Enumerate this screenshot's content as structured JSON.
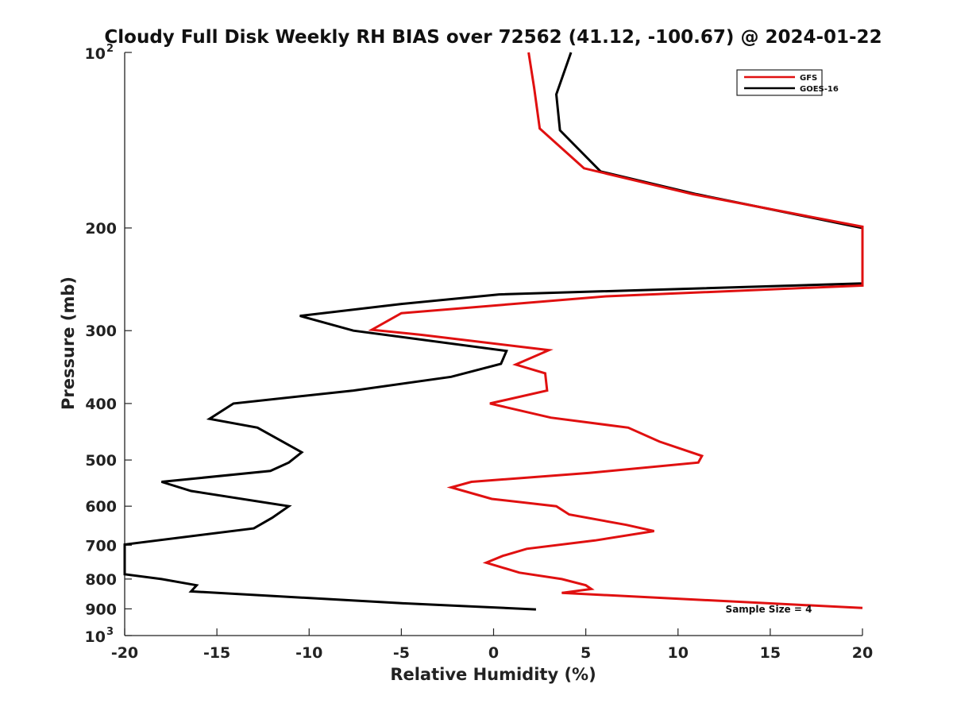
{
  "chart_data": {
    "type": "line",
    "title": "Cloudy Full Disk Weekly RH BIAS over 72562 (41.12, -100.67) @ 2024-01-22",
    "xlabel": "Relative Humidity (%)",
    "ylabel": "Pressure (mb)",
    "xlim": [
      -20,
      20
    ],
    "ylim": [
      100,
      1000
    ],
    "y_scale": "log",
    "y_reversed": true,
    "x_ticks": [
      "-20",
      "-15",
      "-10",
      "-5",
      "0",
      "5",
      "10",
      "15",
      "20"
    ],
    "y_ticks": [
      {
        "value": 100,
        "base": "10",
        "exp": "2"
      },
      {
        "value": 200,
        "label": "200"
      },
      {
        "value": 300,
        "label": "300"
      },
      {
        "value": 400,
        "label": "400"
      },
      {
        "value": 500,
        "label": "500"
      },
      {
        "value": 600,
        "label": "600"
      },
      {
        "value": 700,
        "label": "700"
      },
      {
        "value": 800,
        "label": "800"
      },
      {
        "value": 900,
        "label": "900"
      },
      {
        "value": 1000,
        "base": "10",
        "exp": "3"
      }
    ],
    "grid": false,
    "legend_position": "top-right",
    "series": [
      {
        "name": "GFS",
        "color": "#e01010",
        "points": [
          [
            1.9,
            100
          ],
          [
            2.2,
            115
          ],
          [
            2.5,
            135
          ],
          [
            4.9,
            158
          ],
          [
            10.8,
            175
          ],
          [
            20,
            199
          ],
          [
            20,
            251
          ],
          [
            6.1,
            262
          ],
          [
            -5,
            280
          ],
          [
            -6.6,
            299
          ],
          [
            -3.9,
            305
          ],
          [
            3,
            324
          ],
          [
            1.2,
            343
          ],
          [
            2.8,
            355
          ],
          [
            2.9,
            380
          ],
          [
            -0.2,
            400
          ],
          [
            3.1,
            423
          ],
          [
            7.3,
            440
          ],
          [
            9,
            465
          ],
          [
            11.3,
            492
          ],
          [
            11.1,
            505
          ],
          [
            5.2,
            526
          ],
          [
            -1.2,
            545
          ],
          [
            -2.3,
            557
          ],
          [
            -0.1,
            583
          ],
          [
            3.4,
            600
          ],
          [
            4.1,
            620
          ],
          [
            7.2,
            646
          ],
          [
            8.7,
            662
          ],
          [
            5.5,
            687
          ],
          [
            1.8,
            710
          ],
          [
            0.5,
            730
          ],
          [
            -0.4,
            750
          ],
          [
            1.4,
            780
          ],
          [
            3.7,
            800
          ],
          [
            5,
            820
          ],
          [
            5.3,
            832
          ],
          [
            3.7,
            845
          ],
          [
            20,
            897
          ]
        ]
      },
      {
        "name": "GOES-16",
        "color": "#000000",
        "points": [
          [
            4.2,
            100
          ],
          [
            3.4,
            118
          ],
          [
            3.6,
            136
          ],
          [
            5.8,
            160
          ],
          [
            11,
            175
          ],
          [
            20,
            200
          ],
          [
            20,
            249
          ],
          [
            0.3,
            260
          ],
          [
            -5,
            270
          ],
          [
            -10.5,
            283
          ],
          [
            -7.6,
            300
          ],
          [
            0.7,
            325
          ],
          [
            0.4,
            342
          ],
          [
            -2.3,
            360
          ],
          [
            -7.6,
            380
          ],
          [
            -14.1,
            400
          ],
          [
            -15.4,
            425
          ],
          [
            -12.8,
            440
          ],
          [
            -11.6,
            462
          ],
          [
            -10.4,
            485
          ],
          [
            -11.1,
            505
          ],
          [
            -12.1,
            522
          ],
          [
            -18,
            545
          ],
          [
            -16.4,
            565
          ],
          [
            -11.1,
            600
          ],
          [
            -12,
            628
          ],
          [
            -13,
            655
          ],
          [
            -20,
            698
          ],
          [
            -20,
            785
          ],
          [
            -18,
            800
          ],
          [
            -16.1,
            820
          ],
          [
            -16.4,
            840
          ],
          [
            -5,
            880
          ],
          [
            2.3,
            902
          ]
        ]
      }
    ],
    "annotation": "Sample Size = 4"
  }
}
